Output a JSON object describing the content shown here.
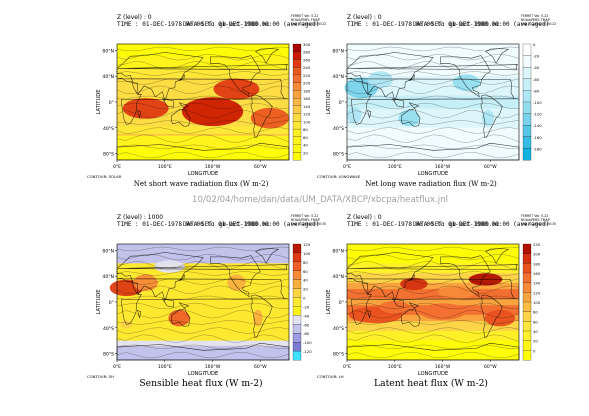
{
  "header_path": "10/02/04/home/dan/data/UM_DATA/XBCP/xbcpa/heatflux.jnl",
  "chart_data": [
    {
      "type": "heatmap",
      "level_text": "Z (level) : 0",
      "time_text": "TIME : 01-DEC-1978 00:00 to 01-DEC-1980 00:00 (averaged)",
      "overlap_text": "DATA SET: gm_oct_1980.nc",
      "ferret_text": [
        "FERRET Ver. 5.22",
        "NOAA/PMEL TMAP",
        "Feb 10 2004  15:30:22"
      ],
      "xlabel": "LONGITUDE",
      "ylabel": "LATITUDE",
      "xticks": [
        "0°E",
        "100°E",
        "160°W",
        "60°W"
      ],
      "yticks": [
        "80°N",
        "40°N",
        "0°",
        "40°S",
        "80°S"
      ],
      "contour_label": "CONTOUR: SOLAR",
      "title": "Net short wave radiation flux (W m-2)",
      "colorbar_values": [
        300,
        280,
        260,
        240,
        220,
        200,
        180,
        160,
        140,
        120,
        100,
        80,
        60,
        40,
        20
      ],
      "colorbar_colors": [
        "#a80000",
        "#cc1a00",
        "#e03a12",
        "#eb5a20",
        "#f07030",
        "#f48a3a",
        "#f8a240",
        "#fab848",
        "#fccc48",
        "#fedd44",
        "#ffe838",
        "#fff028",
        "#fff41c",
        "#fff810",
        "#fffc08"
      ],
      "field": "solar"
    },
    {
      "type": "heatmap",
      "level_text": "Z (level) : 0",
      "time_text": "TIME : 01-DEC-1978 00:00 to 01-DEC-1980 00:00 (averaged)",
      "overlap_text": "DATA SET: gm_oct_1980.nc",
      "ferret_text": [
        "FERRET Ver. 5.22",
        "NOAA/PMEL TMAP",
        "Feb 10 2004  15:30:22"
      ],
      "xlabel": "LONGITUDE",
      "ylabel": "LATITUDE",
      "xticks": [
        "0°E",
        "100°E",
        "160°W",
        "60°W"
      ],
      "yticks": [
        "80°N",
        "40°N",
        "0°",
        "40°S",
        "80°S"
      ],
      "contour_label": "CONTOUR: LONGWAVE",
      "title": "Net long wave radiation flux (W m-2)",
      "colorbar_values": [
        0,
        -20,
        -40,
        -60,
        -80,
        -100,
        -120,
        -140,
        -160,
        -180
      ],
      "colorbar_colors": [
        "#ffffff",
        "#f0fcfe",
        "#dcf6fb",
        "#c6eff7",
        "#aee6f3",
        "#94ddef",
        "#78d2ea",
        "#58c6e5",
        "#36bce2",
        "#10b2de"
      ],
      "field": "longwave"
    },
    {
      "type": "heatmap",
      "level_text": "Z (level) : 1000",
      "time_text": "TIME : 01-DEC-1978 00:00 to 01-DEC-1980 00:00 (averaged)",
      "overlap_text": "DATA SET: gm_oct_1980.nc",
      "ferret_text": [
        "FERRET Ver. 5.22",
        "NOAA/PMEL TMAP",
        "Feb 10 2004  15:30:30"
      ],
      "xlabel": "LONGITUDE",
      "ylabel": "LATITUDE",
      "xticks": [
        "0°E",
        "100°E",
        "160°W",
        "60°W"
      ],
      "yticks": [
        "80°N",
        "40°N",
        "0°",
        "40°S",
        "80°S"
      ],
      "contour_label": "CONTOUR: SH",
      "title": "Sensible heat flux (W m-2)",
      "colorbar_values": [
        120,
        100,
        80,
        60,
        40,
        20,
        0,
        -20,
        -40,
        -60,
        -80,
        -100,
        -120
      ],
      "colorbar_colors": [
        "#b81800",
        "#dc3a12",
        "#ee6028",
        "#f68a38",
        "#fab040",
        "#fdd244",
        "#ffe830",
        "#fff21a",
        "#e2e2f2",
        "#c2c2ea",
        "#9c9ce0",
        "#7c7cd4",
        "#40e0ff"
      ],
      "field": "sensible"
    },
    {
      "type": "heatmap",
      "level_text": "Z (level) : 0",
      "time_text": "TIME : 01-DEC-1978 00:00 to 01-DEC-1980 00:00 (averaged)",
      "overlap_text": "DATA SET: gm_oct_1980.nc",
      "ferret_text": [
        "FERRET Ver. 5.22",
        "NOAA/PMEL TMAP",
        "Feb 10 2004  15:30:30"
      ],
      "xlabel": "LONGITUDE",
      "ylabel": "LATITUDE",
      "xticks": [
        "0°E",
        "100°E",
        "160°W",
        "60°W"
      ],
      "yticks": [
        "80°N",
        "40°N",
        "0°",
        "40°S",
        "80°S"
      ],
      "contour_label": "CONTOUR: LH",
      "title": "Latent heat flux (W m-2)",
      "colorbar_values": [
        220,
        200,
        180,
        160,
        140,
        120,
        100,
        80,
        60,
        40,
        20,
        0
      ],
      "colorbar_colors": [
        "#b01000",
        "#d43010",
        "#e8501e",
        "#f27030",
        "#f68a38",
        "#faa440",
        "#fcbe44",
        "#fed448",
        "#ffe63c",
        "#fff02a",
        "#fff618",
        "#fffc08"
      ],
      "field": "latent"
    }
  ]
}
